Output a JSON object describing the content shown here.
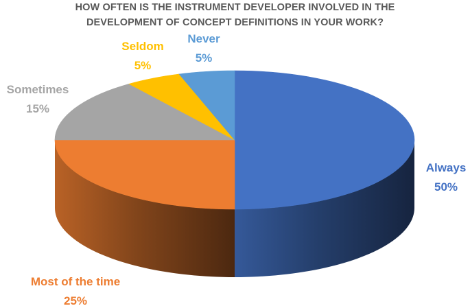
{
  "chart_data": {
    "type": "pie",
    "title_lines": [
      "HOW OFTEN IS THE INSTRUMENT DEVELOPER INVOLVED IN THE",
      "DEVELOPMENT OF CONCEPT DEFINITIONS IN YOUR WORK?"
    ],
    "slices": [
      {
        "label": "Always",
        "value": 50,
        "value_label": "50%",
        "color": "#4472C4"
      },
      {
        "label": "Most of the time",
        "value": 25,
        "value_label": "25%",
        "color": "#ED7D31"
      },
      {
        "label": "Sometimes",
        "value": 15,
        "value_label": "15%",
        "color": "#A5A5A5"
      },
      {
        "label": "Seldom",
        "value": 5,
        "value_label": "5%",
        "color": "#FFC000"
      },
      {
        "label": "Never",
        "value": 5,
        "value_label": "5%",
        "color": "#5B9BD5"
      }
    ],
    "style": "3d"
  }
}
